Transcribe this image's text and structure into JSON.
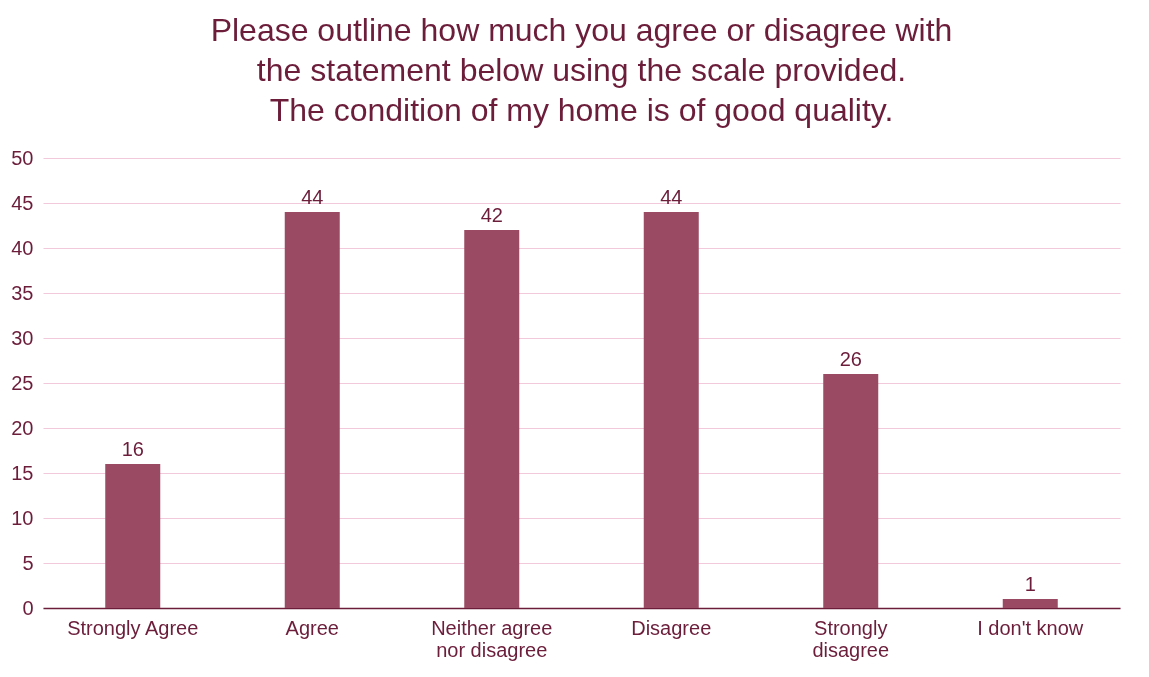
{
  "chart_data": {
    "type": "bar",
    "title": "Please outline how much you agree or disagree with\nthe statement below using the scale provided.\nThe condition of my home is of good quality.",
    "categories": [
      "Strongly Agree",
      "Agree",
      "Neither agree nor disagree",
      "Disagree",
      "Strongly disagree",
      "I don't know"
    ],
    "values": [
      16,
      44,
      42,
      44,
      26,
      1
    ],
    "color": "#9b4a63",
    "ylim": [
      0,
      50
    ],
    "yticks": [
      0,
      5,
      10,
      15,
      20,
      25,
      30,
      35,
      40,
      45,
      50
    ],
    "grid": "y",
    "data_labels": true
  }
}
